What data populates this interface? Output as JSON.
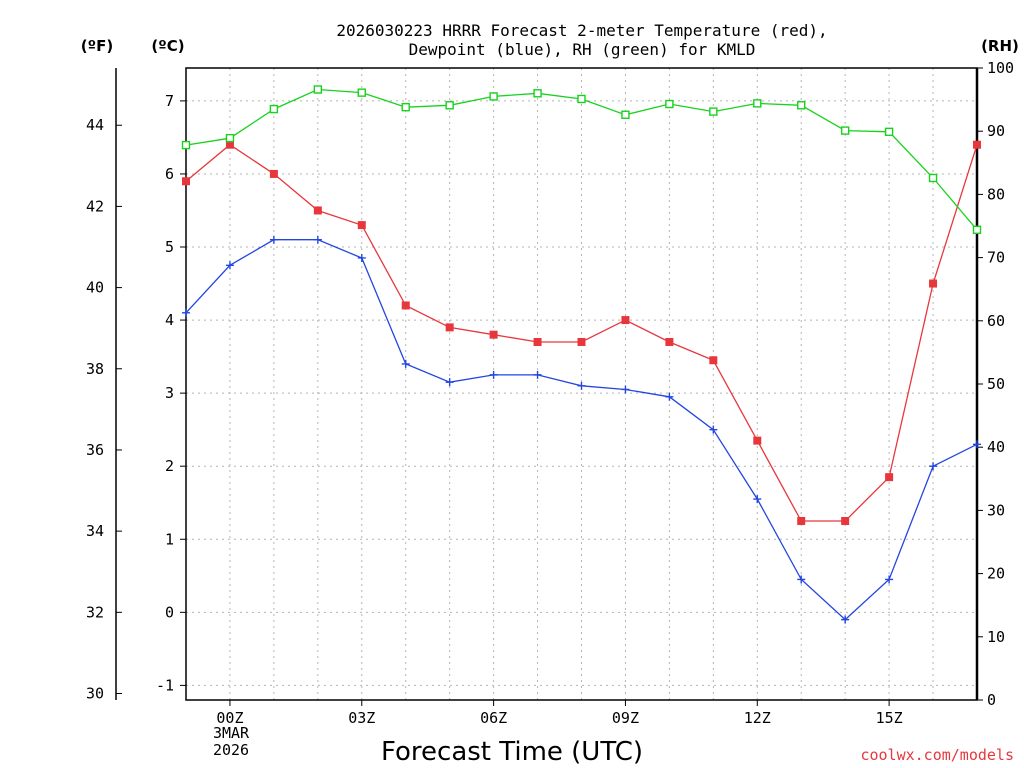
{
  "chart_data": {
    "type": "line",
    "title_line1": "2026030223 HRRR Forecast 2-meter Temperature (red),",
    "title_line2": "Dewpoint (blue), RH (green) for KMLD",
    "xlabel": "Forecast Time (UTC)",
    "credit": "coolwx.com/models",
    "unit_left_f": "(ºF)",
    "unit_left_c": "(ºC)",
    "unit_right": "(RH)",
    "date_label_line1": "3MAR",
    "date_label_line2": "2026",
    "x_hours": [
      -1,
      0,
      1,
      2,
      3,
      4,
      5,
      6,
      7,
      8,
      9,
      10,
      11,
      12,
      13,
      14,
      15,
      16,
      17
    ],
    "xlim": [
      -1,
      17
    ],
    "x_ticks": [
      {
        "hour": 0,
        "label": "00Z"
      },
      {
        "hour": 3,
        "label": "03Z"
      },
      {
        "hour": 6,
        "label": "06Z"
      },
      {
        "hour": 9,
        "label": "09Z"
      },
      {
        "hour": 12,
        "label": "12Z"
      },
      {
        "hour": 15,
        "label": "15Z"
      }
    ],
    "celsius_axis": {
      "ylim": [
        -1.2,
        7.45
      ],
      "ticks": [
        "-1",
        "0",
        "1",
        "2",
        "3",
        "4",
        "5",
        "6",
        "7"
      ]
    },
    "fahrenheit_axis": {
      "ylim": [
        29.84,
        45.41
      ],
      "ticks": [
        "30",
        "32",
        "34",
        "36",
        "38",
        "40",
        "42",
        "44"
      ]
    },
    "rh_axis": {
      "ylim": [
        0,
        100
      ],
      "ticks": [
        "0",
        "10",
        "20",
        "30",
        "40",
        "50",
        "60",
        "70",
        "80",
        "90",
        "100"
      ]
    },
    "grid": true,
    "series": [
      {
        "name": "Temperature",
        "axis": "celsius",
        "color": "#e8373c",
        "marker": "filled-square",
        "values": [
          5.9,
          6.4,
          6.0,
          5.5,
          5.3,
          4.2,
          3.9,
          3.8,
          3.7,
          3.7,
          4.0,
          3.7,
          3.45,
          2.35,
          1.25,
          1.25,
          1.85,
          4.5,
          6.4
        ]
      },
      {
        "name": "Dewpoint",
        "axis": "celsius",
        "color": "#2346e0",
        "marker": "plus",
        "values": [
          4.1,
          4.75,
          5.1,
          5.1,
          4.85,
          3.4,
          3.15,
          3.25,
          3.25,
          3.1,
          3.05,
          2.95,
          2.5,
          1.55,
          0.45,
          -0.1,
          0.45,
          2.0,
          2.3
        ]
      },
      {
        "name": "RH",
        "axis": "rh",
        "color": "#18d21e",
        "marker": "open-square",
        "values": [
          87.8,
          88.9,
          93.5,
          96.6,
          96.1,
          93.8,
          94.1,
          95.5,
          96.0,
          95.1,
          92.6,
          94.3,
          93.1,
          94.4,
          94.1,
          90.1,
          89.9,
          82.6,
          74.4
        ]
      }
    ]
  }
}
